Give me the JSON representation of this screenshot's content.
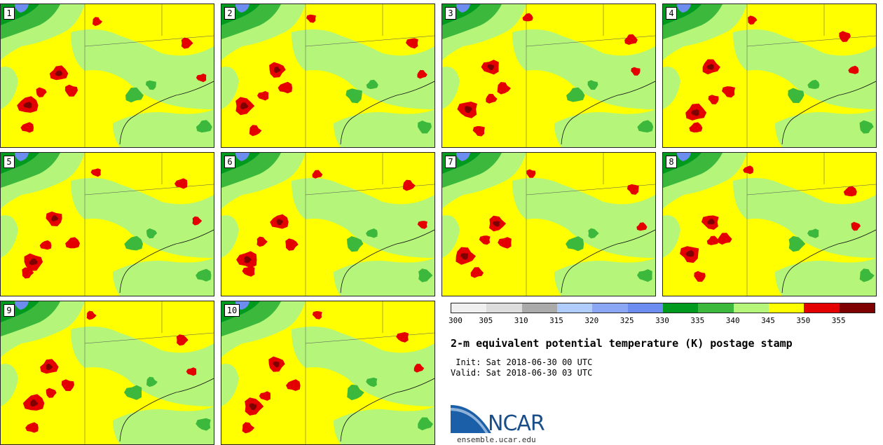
{
  "panels": [
    {
      "label": "1"
    },
    {
      "label": "2"
    },
    {
      "label": "3"
    },
    {
      "label": "4"
    },
    {
      "label": "5"
    },
    {
      "label": "6"
    },
    {
      "label": "7"
    },
    {
      "label": "8"
    },
    {
      "label": "9"
    },
    {
      "label": "10"
    }
  ],
  "colorbar": {
    "colors": [
      "#efefef",
      "#dcdcdc",
      "#aaaaaa",
      "#b0ccfc",
      "#8aa6f5",
      "#6c8cf0",
      "#009a1e",
      "#3cb93c",
      "#b5f57a",
      "#ffff00",
      "#e40000",
      "#7e0000"
    ],
    "tick_labels": [
      "300",
      "305",
      "310",
      "315",
      "320",
      "325",
      "330",
      "335",
      "340",
      "345",
      "350",
      "355"
    ]
  },
  "title": "2-m equivalent potential temperature (K) postage stamp",
  "init": " Init: Sat 2018-06-30 00 UTC",
  "valid": "Valid: Sat 2018-06-30 03 UTC",
  "logo": {
    "text": "NCAR",
    "url": "ensemble.ucar.edu"
  },
  "colors": {
    "dark_green": "#009a1e",
    "mid_green": "#3cb93c",
    "light_green": "#b5f57a",
    "yellow": "#ffff00",
    "red": "#e40000",
    "dark_red": "#7e0000",
    "blue": "#6c8cf0"
  }
}
